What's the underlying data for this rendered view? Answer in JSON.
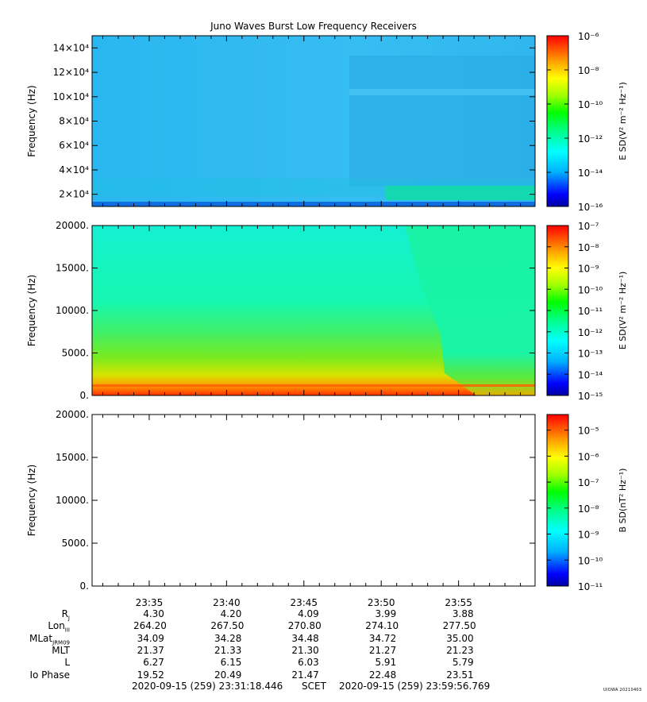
{
  "title": "Juno Waves Burst Low Frequency Receivers",
  "watermark": "UIOWA 20210403",
  "chart_data": [
    {
      "type": "heatmap",
      "ylabel": "Frequency (Hz)",
      "yticks": [
        "2×10⁴",
        "4×10⁴",
        "6×10⁴",
        "8×10⁴",
        "10×10⁴",
        "12×10⁴",
        "14×10⁴"
      ],
      "ytick_values": [
        20000,
        40000,
        60000,
        80000,
        100000,
        120000,
        140000
      ],
      "ylim": [
        10000,
        150000
      ],
      "colorbar": {
        "label": "E SD(V² m⁻² Hz⁻¹)",
        "ticks": [
          "10⁻⁶",
          "10⁻⁸",
          "10⁻¹⁰",
          "10⁻¹²",
          "10⁻¹⁴",
          "10⁻¹⁶"
        ],
        "range_log10": [
          -16,
          -6
        ]
      }
    },
    {
      "type": "heatmap",
      "ylabel": "Frequency (Hz)",
      "yticks": [
        "20000.",
        "15000.",
        "10000.",
        "5000.",
        "0."
      ],
      "ytick_values": [
        20000,
        15000,
        10000,
        5000,
        0
      ],
      "ylim": [
        0,
        20000
      ],
      "colorbar": {
        "label": "E SD(V² m⁻² Hz⁻¹)",
        "ticks": [
          "10⁻⁷",
          "10⁻⁸",
          "10⁻⁹",
          "10⁻¹⁰",
          "10⁻¹¹",
          "10⁻¹²",
          "10⁻¹³",
          "10⁻¹⁴",
          "10⁻¹⁵"
        ],
        "range_log10": [
          -15,
          -7
        ]
      }
    },
    {
      "type": "heatmap",
      "ylabel": "Frequency (Hz)",
      "yticks": [
        "20000.",
        "15000.",
        "10000.",
        "5000.",
        "0."
      ],
      "ytick_values": [
        20000,
        15000,
        10000,
        5000,
        0
      ],
      "ylim": [
        0,
        20000
      ],
      "colorbar": {
        "label": "B SD(nT² Hz⁻¹)",
        "ticks": [
          "10⁻⁵",
          "10⁻⁶",
          "10⁻⁷",
          "10⁻⁸",
          "10⁻⁹",
          "10⁻¹⁰",
          "10⁻¹¹"
        ],
        "range_log10": [
          -11,
          -4.4
        ]
      }
    }
  ],
  "time_axis": {
    "ticks": [
      "23:35",
      "23:40",
      "23:45",
      "23:50",
      "23:55"
    ]
  },
  "ephemeris": {
    "rows": [
      {
        "label": "R",
        "sub": "J",
        "values": [
          "4.30",
          "4.20",
          "4.09",
          "3.99",
          "3.88"
        ]
      },
      {
        "label": "Lon",
        "sub": "III",
        "values": [
          "264.20",
          "267.50",
          "270.80",
          "274.10",
          "277.50"
        ]
      },
      {
        "label": "MLat",
        "sub": "JRM09",
        "values": [
          "34.09",
          "34.28",
          "34.48",
          "34.72",
          "35.00"
        ]
      },
      {
        "label": "MLT",
        "sub": "",
        "values": [
          "21.37",
          "21.33",
          "21.30",
          "21.27",
          "21.23"
        ]
      },
      {
        "label": "L",
        "sub": "",
        "values": [
          "6.27",
          "6.15",
          "6.03",
          "5.91",
          "5.79"
        ]
      },
      {
        "label": "Io Phase",
        "sub": "",
        "values": [
          "19.52",
          "20.49",
          "21.47",
          "22.48",
          "23.51"
        ]
      }
    ]
  },
  "footer": {
    "start": "2020-09-15 (259) 23:31:18.446",
    "scet": "SCET",
    "end": "2020-09-15 (259) 23:59:56.769"
  }
}
